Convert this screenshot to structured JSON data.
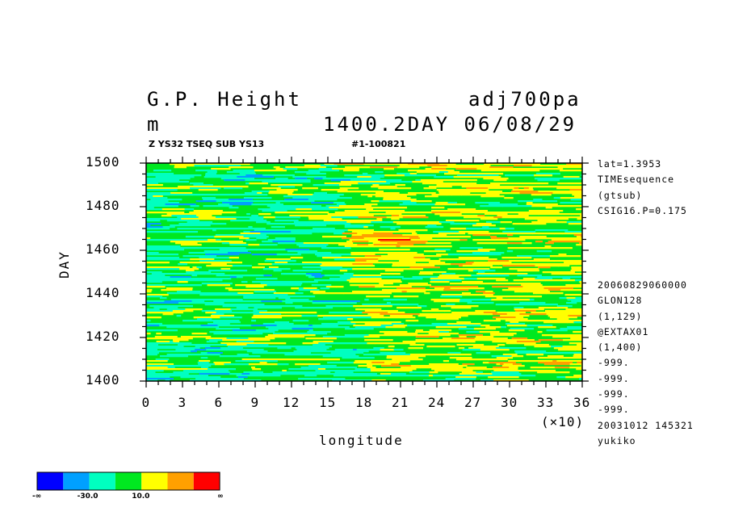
{
  "header": {
    "title_left": "G.P. Height",
    "title_right": "adj700pa",
    "unit": "m",
    "time": "1400.2DAY 06/08/29",
    "sub_left": "Z YS32 TSEQ SUB YS13",
    "sub_right": "#1-100821"
  },
  "side_info": {
    "top": [
      "lat=1.3953",
      "TIMEsequence",
      "(gtsub)",
      "CSIG16.P=0.175"
    ],
    "bottom": [
      "20060829060000",
      "GLON128",
      "(1,129)",
      "@EXTAX01",
      "(1,400)",
      "-999.",
      "-999.",
      "-999.",
      "-999.",
      "20031012 145321",
      "yukiko"
    ]
  },
  "chart_data": {
    "type": "heatmap",
    "xlabel": "longitude",
    "ylabel": "DAY",
    "x_multiplier_label": "(×10)",
    "xlim": [
      0,
      36
    ],
    "ylim": [
      1400,
      1500
    ],
    "x_ticks": [
      "0",
      "3",
      "6",
      "9",
      "12",
      "15",
      "18",
      "21",
      "24",
      "27",
      "30",
      "33",
      "36"
    ],
    "y_ticks": [
      "1400",
      "1420",
      "1440",
      "1460",
      "1480",
      "1500"
    ],
    "color_levels": [
      "#0000ff",
      "#00a0ff",
      "#00ffc0",
      "#00e820",
      "#ffff00",
      "#ffa000",
      "#ff0000"
    ],
    "colorbar_labels": [
      "-∞",
      "-30.0",
      "10.0",
      "∞"
    ]
  }
}
